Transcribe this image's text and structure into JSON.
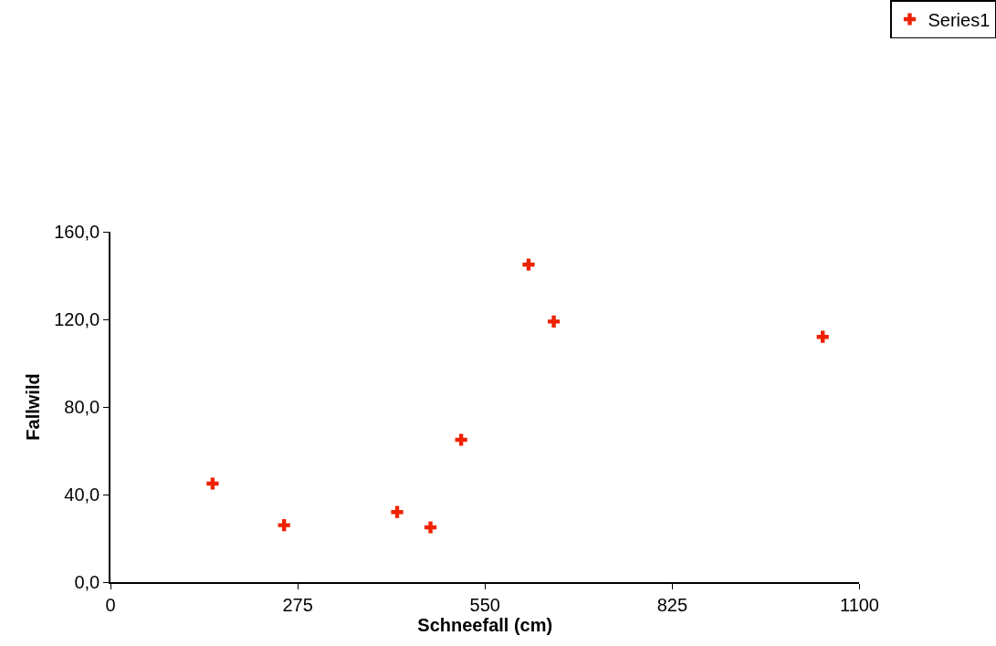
{
  "chart_data": {
    "type": "scatter",
    "xlabel": "Schneefall (cm)",
    "ylabel": "Fallwild",
    "series": [
      {
        "name": "Series1",
        "color": "#ee2200",
        "x": [
          150,
          255,
          421,
          470,
          515,
          614,
          651,
          1046
        ],
        "values": [
          45,
          26,
          32,
          25,
          65,
          145,
          119,
          112
        ]
      }
    ],
    "xlim": [
      0,
      1100
    ],
    "xticks": [
      0,
      275,
      550,
      825,
      1100
    ],
    "ylim": [
      0,
      160
    ],
    "yticks": [
      {
        "value": 0,
        "label": "0,0"
      },
      {
        "value": 40,
        "label": "40,0"
      },
      {
        "value": 80,
        "label": "80,0"
      },
      {
        "value": 120,
        "label": "120,0"
      },
      {
        "value": 160,
        "label": "160,0"
      }
    ],
    "legend": "top right",
    "marker": "cross"
  }
}
